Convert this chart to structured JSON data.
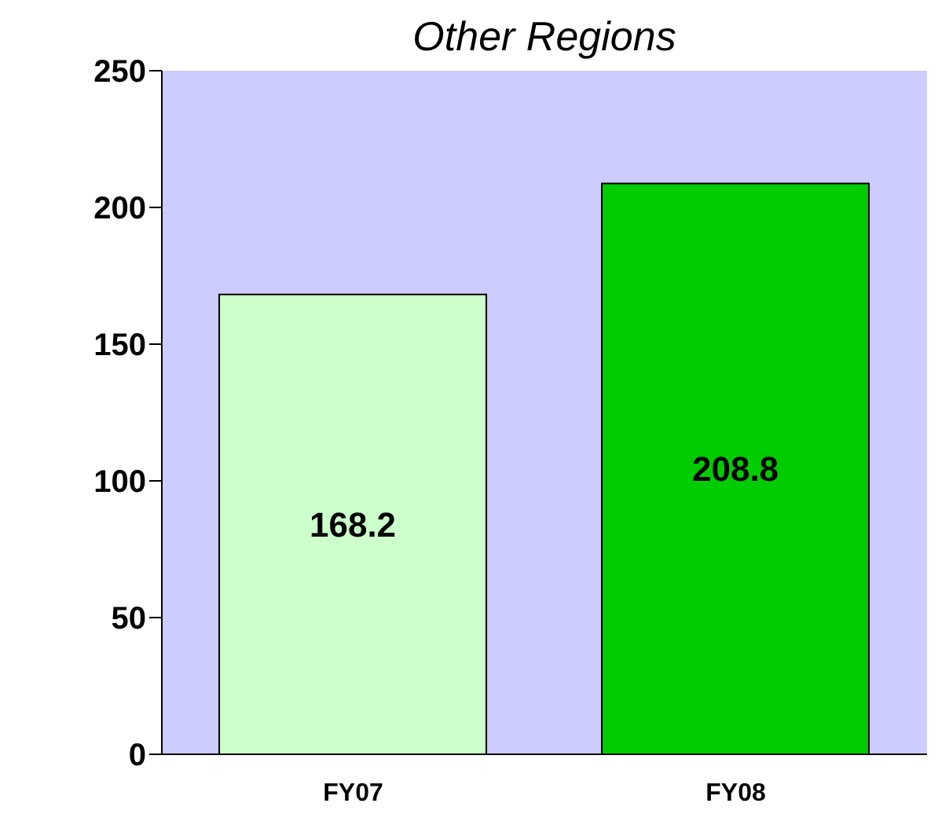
{
  "chart_data": {
    "type": "bar",
    "title": "Other Regions",
    "categories": [
      "FY07",
      "FY08"
    ],
    "values": [
      168.2,
      208.8
    ],
    "colors": [
      "#ccffcc",
      "#00cc00"
    ],
    "ylim": [
      0,
      250
    ],
    "yticks": [
      0,
      50,
      100,
      150,
      200,
      250
    ],
    "data_labels": true
  }
}
